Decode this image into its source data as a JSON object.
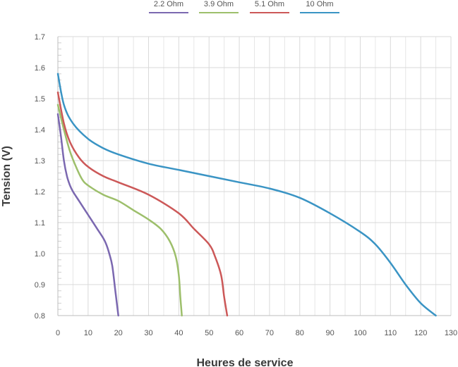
{
  "chart_data": {
    "type": "line",
    "title": "",
    "xlabel": "Heures de service",
    "ylabel": "Tension (V)",
    "xlim": [
      0,
      130
    ],
    "ylim": [
      0.8,
      1.7
    ],
    "x_ticks": [
      "0",
      "10",
      "20",
      "30",
      "40",
      "50",
      "60",
      "70",
      "80",
      "90",
      "100",
      "110",
      "120",
      "130"
    ],
    "y_ticks": [
      "0.8",
      "0.9",
      "1.0",
      "1.1",
      "1.2",
      "1.3",
      "1.4",
      "1.5",
      "1.6",
      "1.7"
    ],
    "grid": true,
    "legend_position": "top",
    "series": [
      {
        "name": "2.2 Ohm",
        "color": "#7b68b0",
        "points": [
          [
            0,
            1.45
          ],
          [
            1,
            1.38
          ],
          [
            2,
            1.3
          ],
          [
            3,
            1.25
          ],
          [
            4,
            1.22
          ],
          [
            5,
            1.2
          ],
          [
            7,
            1.17
          ],
          [
            9,
            1.14
          ],
          [
            11,
            1.11
          ],
          [
            13,
            1.08
          ],
          [
            15,
            1.05
          ],
          [
            16,
            1.03
          ],
          [
            17,
            1.0
          ],
          [
            18,
            0.96
          ],
          [
            19,
            0.88
          ],
          [
            20,
            0.8
          ]
        ]
      },
      {
        "name": "3.9 Ohm",
        "color": "#9dbf6b",
        "points": [
          [
            0,
            1.48
          ],
          [
            2,
            1.4
          ],
          [
            4,
            1.33
          ],
          [
            6,
            1.28
          ],
          [
            8,
            1.24
          ],
          [
            10,
            1.22
          ],
          [
            15,
            1.19
          ],
          [
            20,
            1.17
          ],
          [
            25,
            1.14
          ],
          [
            30,
            1.11
          ],
          [
            34,
            1.08
          ],
          [
            37,
            1.04
          ],
          [
            39,
            0.99
          ],
          [
            40,
            0.93
          ],
          [
            40.5,
            0.86
          ],
          [
            41,
            0.8
          ]
        ]
      },
      {
        "name": "5.1 Ohm",
        "color": "#cc5858",
        "points": [
          [
            0,
            1.52
          ],
          [
            2,
            1.42
          ],
          [
            4,
            1.36
          ],
          [
            7,
            1.31
          ],
          [
            10,
            1.28
          ],
          [
            15,
            1.25
          ],
          [
            20,
            1.23
          ],
          [
            30,
            1.19
          ],
          [
            40,
            1.13
          ],
          [
            45,
            1.08
          ],
          [
            50,
            1.03
          ],
          [
            52,
            0.99
          ],
          [
            54,
            0.93
          ],
          [
            55,
            0.86
          ],
          [
            56,
            0.8
          ]
        ]
      },
      {
        "name": "10 Ohm",
        "color": "#3a94c4",
        "points": [
          [
            0,
            1.58
          ],
          [
            2,
            1.48
          ],
          [
            5,
            1.42
          ],
          [
            10,
            1.37
          ],
          [
            15,
            1.34
          ],
          [
            20,
            1.32
          ],
          [
            30,
            1.29
          ],
          [
            40,
            1.27
          ],
          [
            50,
            1.25
          ],
          [
            60,
            1.23
          ],
          [
            70,
            1.21
          ],
          [
            80,
            1.18
          ],
          [
            90,
            1.13
          ],
          [
            100,
            1.07
          ],
          [
            105,
            1.03
          ],
          [
            110,
            0.97
          ],
          [
            115,
            0.9
          ],
          [
            120,
            0.84
          ],
          [
            125,
            0.8
          ]
        ]
      }
    ]
  }
}
